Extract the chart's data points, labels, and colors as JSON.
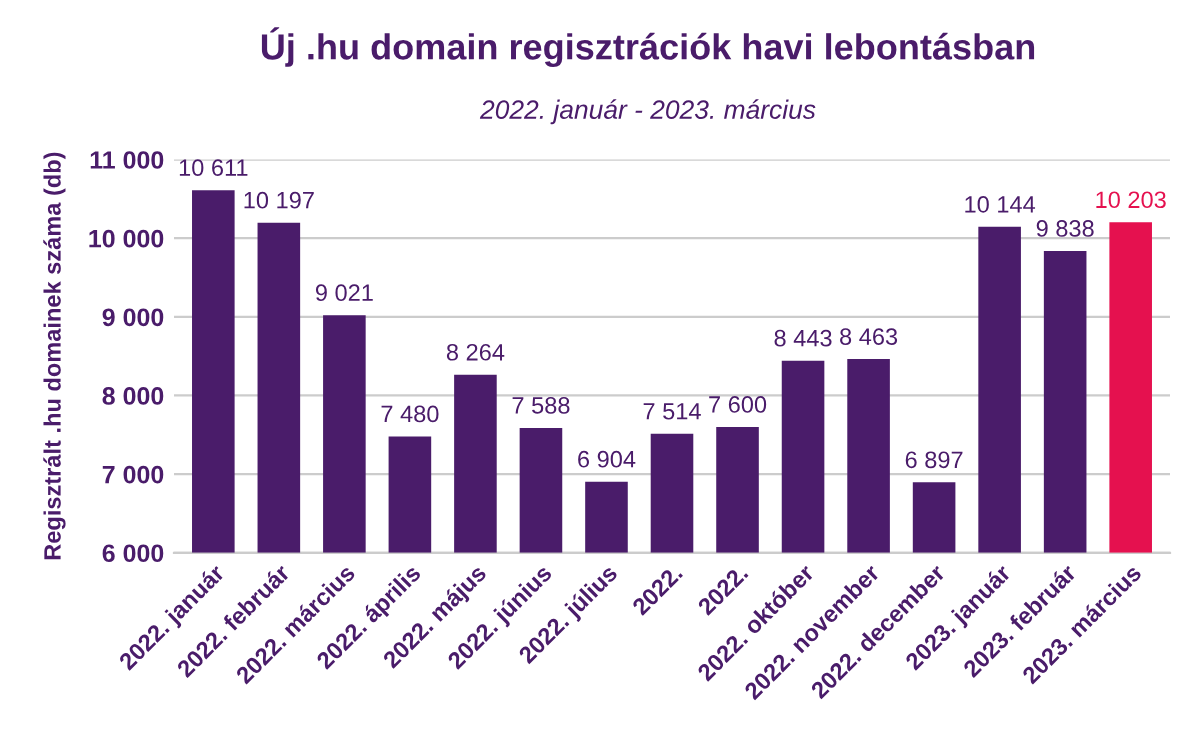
{
  "chart_data": {
    "type": "bar",
    "title": "Új .hu domain regisztrációk havi lebontásban",
    "subtitle": "2022. január - 2023. március",
    "ylabel": "Regisztrált .hu domainek száma (db)",
    "categories": [
      "2022. január",
      "2022. február",
      "2022. március",
      "2022. április",
      "2022. május",
      "2022. június",
      "2022. július",
      "2022.",
      "2022.",
      "2022. október",
      "2022. november",
      "2022. december",
      "2023. január",
      "2023. február",
      "2023. március"
    ],
    "values": [
      10611,
      10197,
      9021,
      7480,
      8264,
      7588,
      6904,
      7514,
      7600,
      8443,
      8463,
      6897,
      10144,
      9838,
      10203
    ],
    "colors": [
      "#4a1c6a",
      "#4a1c6a",
      "#4a1c6a",
      "#4a1c6a",
      "#4a1c6a",
      "#4a1c6a",
      "#4a1c6a",
      "#4a1c6a",
      "#4a1c6a",
      "#4a1c6a",
      "#4a1c6a",
      "#4a1c6a",
      "#4a1c6a",
      "#4a1c6a",
      "#e5114f"
    ],
    "value_labels": [
      "10 611",
      "10 197",
      "9 021",
      "7 480",
      "8 264",
      "7 588",
      "6 904",
      "7 514",
      "7 600",
      "8 443",
      "8 463",
      "6 897",
      "10 144",
      "9 838",
      "10 203"
    ],
    "ylim": [
      6000,
      11000
    ],
    "yticks": [
      {
        "value": 6000,
        "label": "6 000"
      },
      {
        "value": 7000,
        "label": "7 000"
      },
      {
        "value": 8000,
        "label": "8 000"
      },
      {
        "value": 9000,
        "label": "9 000"
      },
      {
        "value": 10000,
        "label": "10 000"
      },
      {
        "value": 11000,
        "label": "11 000"
      }
    ],
    "grid": "y",
    "legend": false
  }
}
